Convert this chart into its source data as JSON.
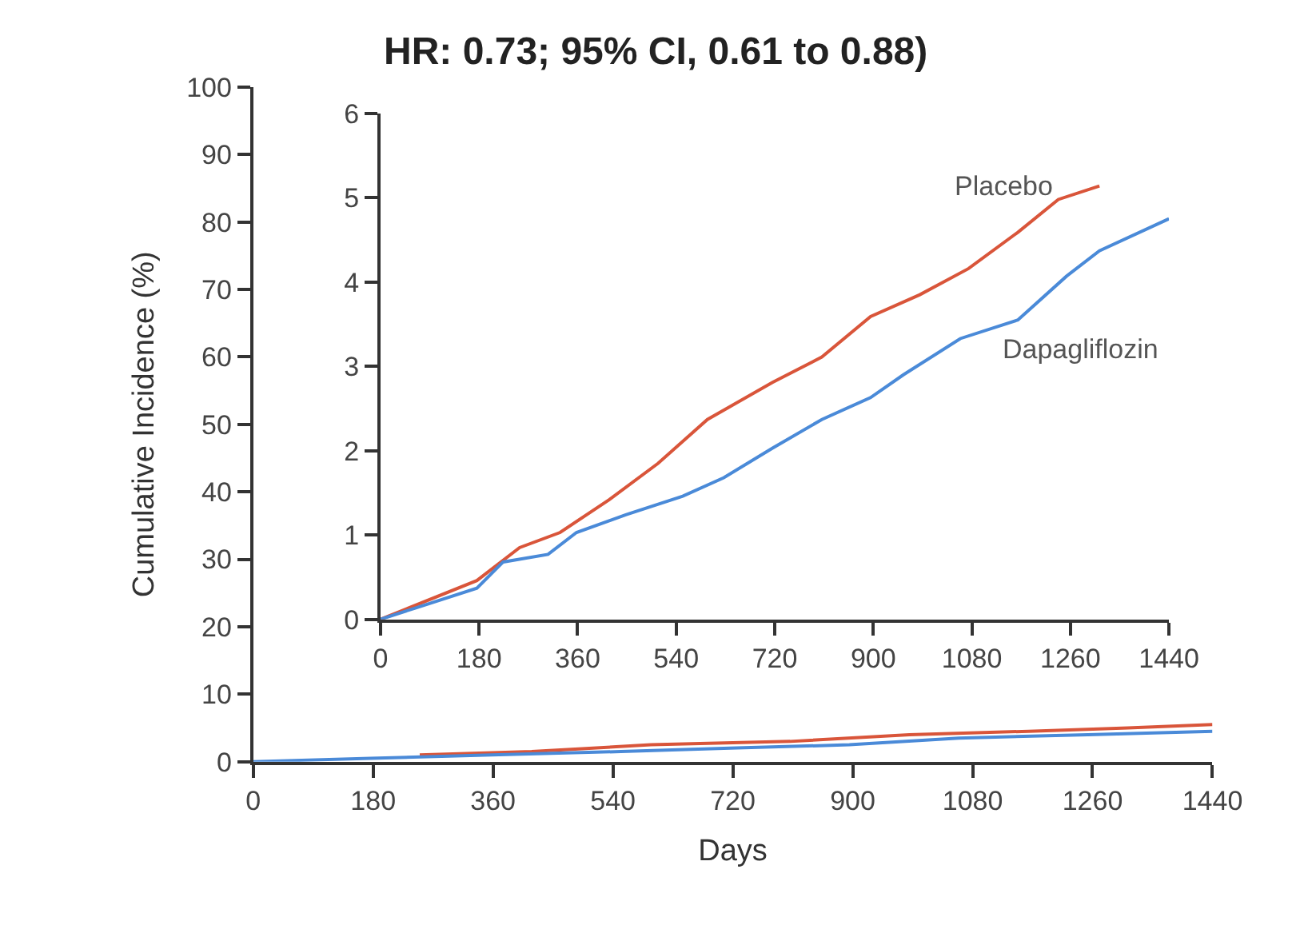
{
  "chart_data": [
    {
      "type": "line",
      "xlabel": "Days",
      "ylabel": "Cumulative Incidence (%)",
      "xlim": [
        0,
        1440
      ],
      "ylim": [
        0,
        100
      ],
      "xticks": [
        0,
        180,
        360,
        540,
        720,
        900,
        1080,
        1260,
        1440
      ],
      "yticks": [
        0,
        10,
        20,
        30,
        40,
        50,
        60,
        70,
        80,
        90,
        100
      ],
      "legend": false,
      "marker": "none",
      "line_style": "solid",
      "series": [
        {
          "color": "#d9553a",
          "x": [
            250,
            418,
            597,
            806,
            985,
            1164,
            1313,
            1440
          ],
          "values": [
            1,
            1.5,
            2.5,
            3,
            4,
            4.5,
            5,
            5.5
          ]
        },
        {
          "color": "#4a8ad8",
          "x": [
            0,
            176,
            358,
            552,
            716,
            895,
            1059,
            1253,
            1440
          ],
          "values": [
            0,
            0.5,
            1,
            1.5,
            2,
            2.5,
            3.5,
            4,
            4.5
          ]
        }
      ]
    },
    {
      "type": "line",
      "title": "HR: 0.73; 95% CI, 0.61 to 0.88)",
      "xlim": [
        0,
        1440
      ],
      "ylim": [
        0,
        6
      ],
      "xticks": [
        0,
        180,
        360,
        540,
        720,
        900,
        1080,
        1260,
        1440
      ],
      "yticks": [
        0,
        1,
        2,
        3,
        4,
        5,
        6
      ],
      "legend": false,
      "marker": "none",
      "line_style": "solid",
      "series": [
        {
          "name": "Placebo",
          "color": "#d9553a",
          "x": [
            0,
            176,
            254,
            328,
            418,
            507,
            597,
            716,
            806,
            895,
            985,
            1074,
            1164,
            1238,
            1313
          ],
          "values": [
            0,
            0.46,
            0.85,
            1.03,
            1.42,
            1.85,
            2.37,
            2.81,
            3.11,
            3.59,
            3.85,
            4.16,
            4.59,
            4.98,
            5.14
          ]
        },
        {
          "name": "Dapagliflozin",
          "color": "#4a8ad8",
          "x": [
            0,
            176,
            224,
            306,
            358,
            448,
            552,
            627,
            716,
            806,
            895,
            955,
            1059,
            1164,
            1253,
            1313,
            1440
          ],
          "values": [
            0,
            0.37,
            0.68,
            0.77,
            1.03,
            1.24,
            1.46,
            1.68,
            2.03,
            2.37,
            2.63,
            2.9,
            3.33,
            3.55,
            4.07,
            4.37,
            4.75
          ]
        }
      ]
    }
  ]
}
